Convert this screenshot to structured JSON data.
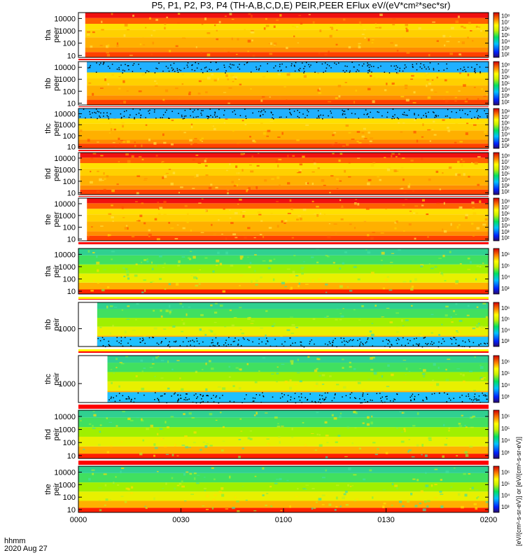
{
  "title": "P5, P1, P2, P3, P4 (TH-A,B,C,D,E) PEIR,PEER EFlux eV/(eV*cm²*sec*sr)",
  "colorbar_unit": "[eV/(cm²-s-sr-eV)] or [eV/(cm²-s-sr-eV)]",
  "x_axis": {
    "corner_label_1": "hhmm",
    "corner_label_2": "2020 Aug 27",
    "ticks": [
      "0000",
      "0030",
      "0100",
      "0130",
      "0200"
    ],
    "range_minutes": [
      0,
      120
    ]
  },
  "chart_data": [
    {
      "type": "heatmap",
      "panel": "tha-peer",
      "ylabel": [
        "tha",
        "peer"
      ],
      "yticks": [
        "10",
        "100",
        "1000",
        "10000"
      ],
      "yscale": "log",
      "ylim": [
        7,
        30000
      ],
      "cbar_ticks": [
        "10²",
        "10³",
        "10⁴",
        "10⁵",
        "10⁶",
        "10⁷",
        "10⁸"
      ],
      "data_start_min": 2.0
    },
    {
      "type": "heatmap",
      "panel": "thb-peer",
      "ylabel": [
        "thb",
        "peer"
      ],
      "yticks": [
        "10",
        "100",
        "1000",
        "10000"
      ],
      "yscale": "log",
      "ylim": [
        7,
        30000
      ],
      "cbar_ticks": [
        "10²",
        "10³",
        "10⁴",
        "10⁵",
        "10⁶",
        "10⁷",
        "10⁸"
      ],
      "data_start_min": 2.5
    },
    {
      "type": "heatmap",
      "panel": "thc-peer",
      "ylabel": [
        "thc",
        "peer"
      ],
      "yticks": [
        "10",
        "100",
        "1000",
        "10000"
      ],
      "yscale": "log",
      "ylim": [
        7,
        30000
      ],
      "cbar_ticks": [
        "10²",
        "10³",
        "10⁴",
        "10⁵",
        "10⁶",
        "10⁷",
        "10⁸"
      ],
      "data_start_min": 0.0
    },
    {
      "type": "heatmap",
      "panel": "thd-peer",
      "ylabel": [
        "thd",
        "peer"
      ],
      "yticks": [
        "10",
        "100",
        "1000",
        "10000"
      ],
      "yscale": "log",
      "ylim": [
        7,
        30000
      ],
      "cbar_ticks": [
        "10²",
        "10³",
        "10⁴",
        "10⁵",
        "10⁶",
        "10⁷",
        "10⁸"
      ],
      "data_start_min": 0.5
    },
    {
      "type": "heatmap",
      "panel": "the-peer",
      "ylabel": [
        "the",
        "peer"
      ],
      "yticks": [
        "10",
        "100",
        "1000",
        "10000"
      ],
      "yscale": "log",
      "ylim": [
        7,
        30000
      ],
      "cbar_ticks": [
        "10²",
        "10³",
        "10⁴",
        "10⁵",
        "10⁶",
        "10⁷",
        "10⁸"
      ],
      "data_start_min": 2.5
    },
    {
      "type": "heatmap",
      "panel": "tha-peir",
      "ylabel": [
        "tha",
        "peir"
      ],
      "yticks": [
        "10",
        "100",
        "1000",
        "10000"
      ],
      "yscale": "log",
      "ylim": [
        6,
        30000
      ],
      "cbar_ticks": [
        "10³",
        "10⁴",
        "10⁵",
        "10⁶"
      ],
      "data_start_min": 0.0
    },
    {
      "type": "heatmap",
      "panel": "thb-peir",
      "ylabel": [
        "thb",
        "peir"
      ],
      "yticks": [
        "1000"
      ],
      "yscale": "log",
      "ylim": [
        100,
        30000
      ],
      "cbar_ticks": [
        "10³",
        "10⁴",
        "10⁵",
        "10⁶"
      ],
      "data_start_min": 5.5
    },
    {
      "type": "heatmap",
      "panel": "thc-peir",
      "ylabel": [
        "thc",
        "peir"
      ],
      "yticks": [
        "1000"
      ],
      "yscale": "log",
      "ylim": [
        100,
        30000
      ],
      "cbar_ticks": [
        "10³",
        "10⁴",
        "10⁵",
        "10⁶"
      ],
      "data_start_min": 8.5
    },
    {
      "type": "heatmap",
      "panel": "thd-peir",
      "ylabel": [
        "thd",
        "peir"
      ],
      "yticks": [
        "10",
        "100",
        "1000",
        "10000"
      ],
      "yscale": "log",
      "ylim": [
        6,
        30000
      ],
      "cbar_ticks": [
        "10³",
        "10⁴",
        "10⁵",
        "10⁶"
      ],
      "data_start_min": 0.0
    },
    {
      "type": "heatmap",
      "panel": "the-peir",
      "ylabel": [
        "the",
        "peir"
      ],
      "yticks": [
        "10",
        "100",
        "1000",
        "10000"
      ],
      "yscale": "log",
      "ylim": [
        6,
        30000
      ],
      "cbar_ticks": [
        "10³",
        "10⁴",
        "10⁵",
        "10⁶"
      ],
      "data_start_min": 0.0
    }
  ]
}
